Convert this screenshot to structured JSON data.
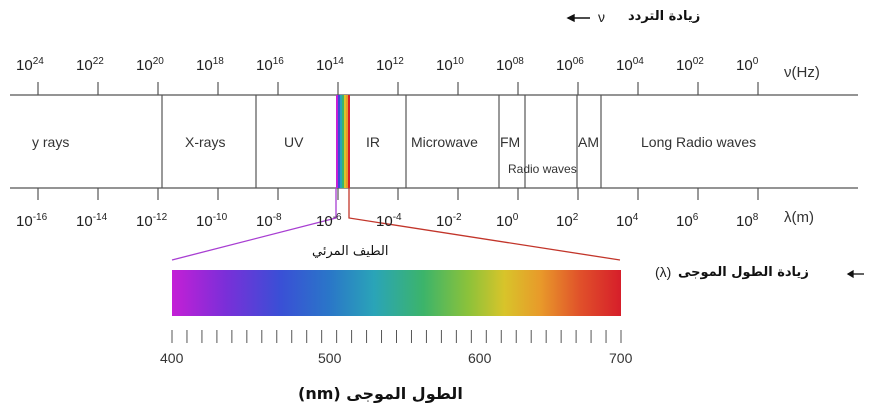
{
  "header": {
    "freq_increase": "زيادة التردد",
    "freq_symbol": "ν",
    "wl_increase": "زيادة الطول الموجى",
    "wl_symbol": "(λ)"
  },
  "frequency_axis": {
    "unit": "ν(Hz)",
    "ticks": [
      {
        "base": "10",
        "exp": "24"
      },
      {
        "base": "10",
        "exp": "22"
      },
      {
        "base": "10",
        "exp": "20"
      },
      {
        "base": "10",
        "exp": "18"
      },
      {
        "base": "10",
        "exp": "16"
      },
      {
        "base": "10",
        "exp": "14"
      },
      {
        "base": "10",
        "exp": "12"
      },
      {
        "base": "10",
        "exp": "10"
      },
      {
        "base": "10",
        "exp": "08"
      },
      {
        "base": "10",
        "exp": "06"
      },
      {
        "base": "10",
        "exp": "04"
      },
      {
        "base": "10",
        "exp": "02"
      },
      {
        "base": "10",
        "exp": "0"
      }
    ]
  },
  "wavelength_axis": {
    "unit": "λ(m)",
    "ticks": [
      {
        "base": "10",
        "exp": "-16"
      },
      {
        "base": "10",
        "exp": "-14"
      },
      {
        "base": "10",
        "exp": "-12"
      },
      {
        "base": "10",
        "exp": "-10"
      },
      {
        "base": "10",
        "exp": "-8"
      },
      {
        "base": "10",
        "exp": "-6"
      },
      {
        "base": "10",
        "exp": "-4"
      },
      {
        "base": "10",
        "exp": "-2"
      },
      {
        "base": "10",
        "exp": "0"
      },
      {
        "base": "10",
        "exp": "2"
      },
      {
        "base": "10",
        "exp": "4"
      },
      {
        "base": "10",
        "exp": "6"
      },
      {
        "base": "10",
        "exp": "8"
      }
    ]
  },
  "bands": {
    "gamma": "y rays",
    "xrays": "X-rays",
    "uv": "UV",
    "ir": "IR",
    "microwave": "Microwave",
    "fm": "FM",
    "am": "AM",
    "radio": "Radio waves",
    "long_radio": "Long Radio waves"
  },
  "visible": {
    "label": "الطيف المرئي",
    "scale_ticks": [
      "400",
      "500",
      "600",
      "700"
    ],
    "axis_title": "(nm) الطول الموجى",
    "gradient_colors": [
      "#c41fd6",
      "#7a2fd8",
      "#3a4fd6",
      "#2a76c8",
      "#2aa4b8",
      "#3cb46a",
      "#8cc23a",
      "#d8c42a",
      "#e89a2a",
      "#e0502a",
      "#d61e2a"
    ]
  }
}
